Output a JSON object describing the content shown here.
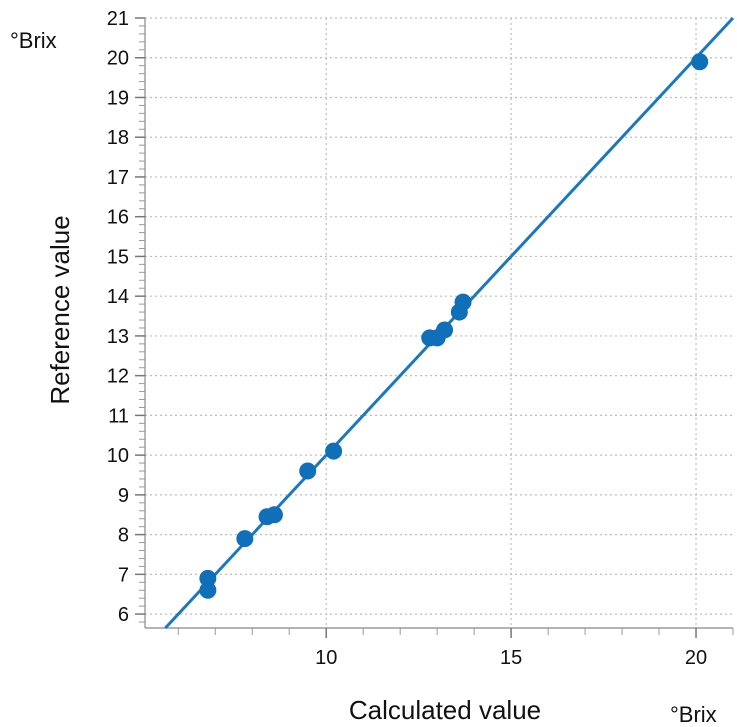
{
  "chart_data": {
    "type": "scatter",
    "xlabel": "Calculated value",
    "ylabel": "Reference value",
    "x_unit": "°Brix",
    "y_unit": "°Brix",
    "xlim": [
      5.1,
      21.0
    ],
    "ylim": [
      5.65,
      21.0
    ],
    "x_ticks": [
      10,
      15,
      20
    ],
    "y_ticks": [
      6,
      7,
      8,
      9,
      10,
      11,
      12,
      13,
      14,
      15,
      16,
      17,
      18,
      19,
      20,
      21
    ],
    "grid": true,
    "regression_line": {
      "slope": 1.0,
      "intercept": 0.0
    },
    "colors": {
      "points": "#0f6fb8",
      "line": "#1a78c0"
    },
    "points": [
      {
        "x": 6.8,
        "y": 6.9
      },
      {
        "x": 6.8,
        "y": 6.6
      },
      {
        "x": 7.8,
        "y": 7.9
      },
      {
        "x": 8.4,
        "y": 8.45
      },
      {
        "x": 8.6,
        "y": 8.5
      },
      {
        "x": 9.5,
        "y": 9.6
      },
      {
        "x": 10.2,
        "y": 10.1
      },
      {
        "x": 12.8,
        "y": 12.95
      },
      {
        "x": 13.0,
        "y": 12.95
      },
      {
        "x": 13.2,
        "y": 13.15
      },
      {
        "x": 13.6,
        "y": 13.6
      },
      {
        "x": 13.7,
        "y": 13.85
      },
      {
        "x": 20.1,
        "y": 19.9
      }
    ]
  }
}
